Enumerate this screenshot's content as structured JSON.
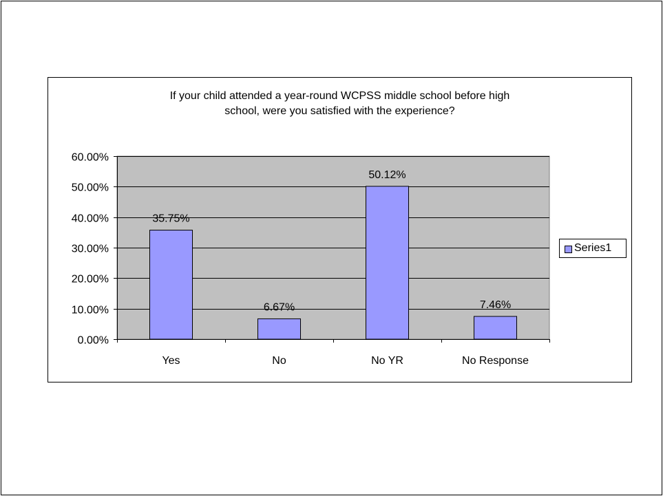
{
  "chart_data": {
    "type": "bar",
    "title_lines": [
      "If your child attended a year-round WCPSS middle school before high",
      "school, were you satisfied with the experience?"
    ],
    "categories": [
      "Yes",
      "No",
      "No YR",
      "No Response"
    ],
    "series": [
      {
        "name": "Series1",
        "values": [
          35.75,
          6.67,
          50.12,
          7.46
        ],
        "labels": [
          "35.75%",
          "6.67%",
          "50.12%",
          "7.46%"
        ],
        "color": "#9999ff"
      }
    ],
    "ylim": [
      0,
      60
    ],
    "yticks": [
      0,
      10,
      20,
      30,
      40,
      50,
      60
    ],
    "ytick_labels": [
      "0.00%",
      "10.00%",
      "20.00%",
      "30.00%",
      "40.00%",
      "50.00%",
      "60.00%"
    ],
    "grid": true,
    "legend_position": "right",
    "plot_background": "#c0c0c0"
  }
}
